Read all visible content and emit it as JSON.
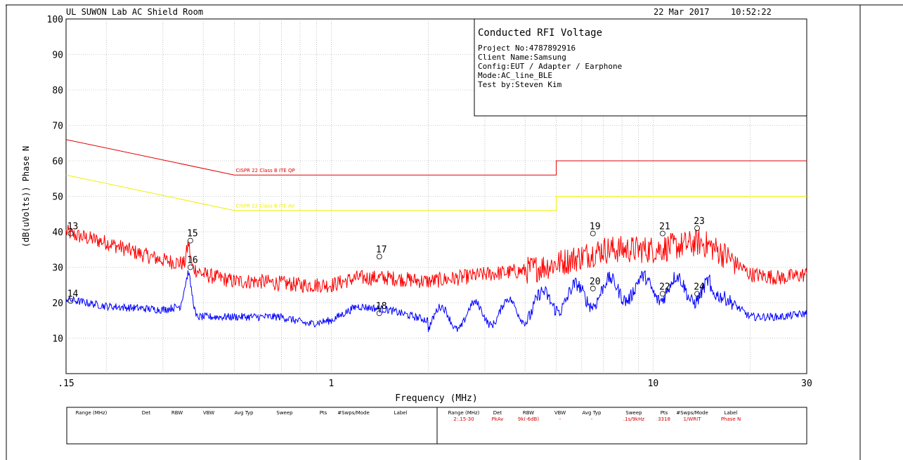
{
  "header": {
    "lab": "UL SUWON Lab AC Shield Room",
    "date": "22 Mar 2017",
    "time": "10:52:22"
  },
  "info_box": {
    "title": "Conducted RFI Voltage",
    "lines": [
      "Project No:4787892916",
      "Client Name:Samsung",
      "Config:EUT / Adapter / Earphone",
      "Mode:AC_line_BLE",
      "Test by:Steven Kim"
    ]
  },
  "colors": {
    "qp_trace": "#ff0000",
    "av_trace": "#0000ff",
    "qp_limit": "#e00000",
    "av_limit": "#f0f000",
    "grid": "#999999"
  },
  "chart_data": {
    "type": "line",
    "title": "",
    "xlabel": "Frequency (MHz)",
    "ylabel": "(dB(uVolts)) Phase N",
    "xscale": "log",
    "xlim": [
      0.15,
      30
    ],
    "ylim": [
      0,
      100
    ],
    "x_tick_labels": [
      {
        "x": 0.15,
        "label": ".15"
      },
      {
        "x": 1,
        "label": "1"
      },
      {
        "x": 10,
        "label": "10"
      },
      {
        "x": 30,
        "label": "30"
      }
    ],
    "y_ticks": [
      10,
      20,
      30,
      40,
      50,
      60,
      70,
      80,
      90,
      100
    ],
    "grid": true,
    "limits": [
      {
        "name": "CISPR 22 Class B ITE QP",
        "color": "#e00000",
        "x": [
          0.15,
          0.5,
          0.5,
          5,
          5,
          30
        ],
        "y": [
          66,
          56,
          56,
          56,
          60,
          60
        ]
      },
      {
        "name": "CISPR 22 Class B ITE AV",
        "color": "#f0f000",
        "x": [
          0.15,
          0.5,
          0.5,
          5,
          5,
          30
        ],
        "y": [
          56,
          46,
          46,
          46,
          50,
          50
        ]
      }
    ],
    "series": [
      {
        "color": "#ff0000",
        "noise": 2.2,
        "x": [
          0.15,
          0.16,
          0.2,
          0.25,
          0.3,
          0.35,
          0.36,
          0.37,
          0.4,
          0.5,
          0.6,
          0.8,
          1.0,
          1.2,
          1.5,
          2.0,
          2.5,
          3.0,
          4.0,
          5.0,
          6.0,
          7.0,
          8.0,
          10.0,
          12.0,
          14.0,
          15.0,
          17.0,
          20.0,
          25.0,
          30.0
        ],
        "y": [
          40,
          39,
          37,
          34,
          32,
          31,
          37,
          30,
          28,
          26,
          26,
          25,
          25,
          27,
          27,
          26,
          27,
          28,
          29,
          31,
          33,
          35,
          35,
          35,
          36,
          37,
          36,
          33,
          28,
          27,
          28
        ]
      },
      {
        "color": "#0000ff",
        "noise": 1.1,
        "x": [
          0.15,
          0.2,
          0.3,
          0.34,
          0.36,
          0.37,
          0.38,
          0.4,
          0.5,
          0.7,
          0.85,
          1.0,
          1.2,
          1.5,
          2.0,
          2.5,
          3.0,
          4.0,
          5.0,
          6.0,
          7.0,
          8.0,
          10.0,
          12.0,
          15.0,
          17.0,
          20.0,
          25.0,
          30.0
        ],
        "y": [
          21,
          19,
          18,
          19,
          29,
          22,
          16,
          16,
          16,
          16,
          14,
          15,
          19,
          18,
          15,
          16,
          17,
          18,
          21,
          22,
          23,
          24,
          24,
          24,
          23,
          21,
          16,
          16,
          17
        ]
      }
    ],
    "markers": [
      {
        "label": "13",
        "x": 0.155,
        "y": 39.5
      },
      {
        "label": "14",
        "x": 0.155,
        "y": 20.5
      },
      {
        "label": "15",
        "x": 0.365,
        "y": 37.5
      },
      {
        "label": "16",
        "x": 0.365,
        "y": 30
      },
      {
        "label": "17",
        "x": 1.41,
        "y": 33
      },
      {
        "label": "18",
        "x": 1.41,
        "y": 17
      },
      {
        "label": "19",
        "x": 6.5,
        "y": 39.5
      },
      {
        "label": "20",
        "x": 6.5,
        "y": 24
      },
      {
        "label": "21",
        "x": 10.7,
        "y": 39.5
      },
      {
        "label": "22",
        "x": 10.7,
        "y": 22.5
      },
      {
        "label": "23",
        "x": 13.7,
        "y": 41
      },
      {
        "label": "24",
        "x": 13.7,
        "y": 22.5
      }
    ]
  },
  "settings_table": {
    "left_headers": [
      "Range (MHz)",
      "Det",
      "RBW",
      "VBW",
      "Avg Typ",
      "Sweep",
      "Pts",
      "#Swps/Mode",
      "Label"
    ],
    "right_headers": [
      "Range (MHz)",
      "Det",
      "RBW",
      "VBW",
      "Avg Typ",
      "Sweep",
      "Pts",
      "#Swps/Mode",
      "Label"
    ],
    "right_row": [
      "2:.15-30",
      "PkAv",
      "9k(-6dB)",
      "-",
      "-",
      ".1s/9kHz",
      "3318",
      "1/WRIT",
      "Phase N"
    ]
  }
}
